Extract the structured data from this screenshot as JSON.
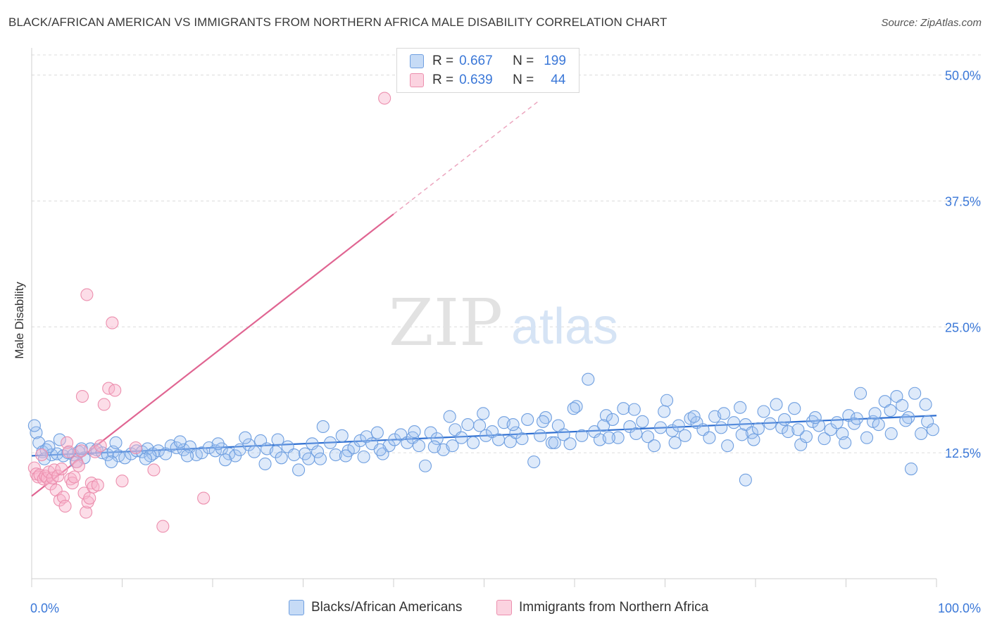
{
  "title": "BLACK/AFRICAN AMERICAN VS IMMIGRANTS FROM NORTHERN AFRICA MALE DISABILITY CORRELATION CHART",
  "source": "Source: ZipAtlas.com",
  "watermark": {
    "zip": "ZIP",
    "atlas": "atlas"
  },
  "legend": {
    "r_label": "R =",
    "n_label": "N =",
    "items": [
      {
        "r": "0.667",
        "n": "199",
        "color": "#a9c8f2",
        "border": "#6f9fe0"
      },
      {
        "r": "0.639",
        "n": "44",
        "color": "#f9c4d4",
        "border": "#ec8fae"
      }
    ]
  },
  "bottom_legend": [
    "Blacks/African Americans",
    "Immigrants from Northern Africa"
  ],
  "chart_data": {
    "type": "scatter",
    "title": "BLACK/AFRICAN AMERICAN VS IMMIGRANTS FROM NORTHERN AFRICA MALE DISABILITY CORRELATION CHART",
    "xlabel": "",
    "ylabel": "Male Disability",
    "xlim": [
      0,
      100
    ],
    "ylim": [
      0,
      52
    ],
    "x_tick_labels": [
      "0.0%",
      "100.0%"
    ],
    "y_ticks": [
      12.5,
      25.0,
      37.5,
      50.0
    ],
    "y_tick_labels": [
      "12.5%",
      "25.0%",
      "37.5%",
      "50.0%"
    ],
    "grid": true,
    "series": [
      {
        "name": "Blacks/African Americans",
        "color": "#7aa7e6",
        "trend": {
          "x0": 0,
          "y0": 12.2,
          "x1": 100,
          "y1": 16.2
        },
        "points": [
          [
            0.5,
            14.5
          ],
          [
            0.8,
            13.5
          ],
          [
            1.2,
            12.6
          ],
          [
            1.6,
            12.8
          ],
          [
            2.2,
            12.3
          ],
          [
            2.8,
            12.4
          ],
          [
            3.5,
            12.2
          ],
          [
            4,
            12.5
          ],
          [
            4.6,
            12.3
          ],
          [
            5.2,
            12.6
          ],
          [
            5.8,
            12.0
          ],
          [
            6.5,
            12.9
          ],
          [
            7.2,
            12.8
          ],
          [
            7.8,
            12.5
          ],
          [
            8.4,
            12.3
          ],
          [
            9,
            12.6
          ],
          [
            9.6,
            12.2
          ],
          [
            10.3,
            12.0
          ],
          [
            11,
            12.4
          ],
          [
            11.6,
            12.7
          ],
          [
            12.2,
            12.6
          ],
          [
            12.8,
            12.9
          ],
          [
            13.4,
            12.4
          ],
          [
            14,
            12.7
          ],
          [
            14.8,
            12.4
          ],
          [
            15.4,
            13.2
          ],
          [
            16,
            13.0
          ],
          [
            16.8,
            12.8
          ],
          [
            17.5,
            13.1
          ],
          [
            18.2,
            12.3
          ],
          [
            18.8,
            12.5
          ],
          [
            19.6,
            13.0
          ],
          [
            20.3,
            12.7
          ],
          [
            21,
            12.9
          ],
          [
            21.8,
            12.4
          ],
          [
            22.5,
            12.2
          ],
          [
            23,
            12.8
          ],
          [
            24,
            13.3
          ],
          [
            24.6,
            12.6
          ],
          [
            25.3,
            13.7
          ],
          [
            26,
            12.9
          ],
          [
            27,
            12.6
          ],
          [
            27.6,
            12.0
          ],
          [
            28.3,
            13.1
          ],
          [
            29,
            12.3
          ],
          [
            29.5,
            10.8
          ],
          [
            30.2,
            12.4
          ],
          [
            31,
            13.4
          ],
          [
            31.6,
            12.6
          ],
          [
            32.2,
            15.1
          ],
          [
            33,
            13.5
          ],
          [
            33.6,
            12.3
          ],
          [
            34.3,
            14.2
          ],
          [
            35,
            12.7
          ],
          [
            35.6,
            13.0
          ],
          [
            36.3,
            13.7
          ],
          [
            37,
            14.1
          ],
          [
            37.6,
            13.4
          ],
          [
            38.2,
            14.5
          ],
          [
            38.8,
            12.4
          ],
          [
            39.5,
            13.2
          ],
          [
            40.1,
            13.8
          ],
          [
            40.8,
            14.3
          ],
          [
            41.5,
            13.5
          ],
          [
            42.1,
            14.0
          ],
          [
            42.8,
            13.2
          ],
          [
            43.5,
            11.2
          ],
          [
            44.1,
            14.5
          ],
          [
            44.8,
            13.9
          ],
          [
            45.5,
            12.8
          ],
          [
            46.2,
            16.1
          ],
          [
            46.8,
            14.8
          ],
          [
            47.5,
            14.0
          ],
          [
            48.2,
            15.3
          ],
          [
            48.8,
            13.5
          ],
          [
            49.5,
            15.2
          ],
          [
            50.2,
            14.2
          ],
          [
            50.9,
            14.6
          ],
          [
            51.6,
            13.8
          ],
          [
            52.2,
            15.5
          ],
          [
            52.9,
            13.6
          ],
          [
            53.5,
            14.5
          ],
          [
            54.2,
            13.9
          ],
          [
            54.8,
            15.8
          ],
          [
            55.5,
            11.6
          ],
          [
            56.2,
            14.2
          ],
          [
            56.8,
            16.0
          ],
          [
            57.5,
            13.5
          ],
          [
            58.2,
            15.2
          ],
          [
            58.8,
            14.3
          ],
          [
            59.5,
            13.4
          ],
          [
            60.2,
            17.1
          ],
          [
            60.8,
            14.2
          ],
          [
            61.5,
            19.8
          ],
          [
            62.2,
            14.6
          ],
          [
            62.8,
            13.8
          ],
          [
            63.5,
            16.2
          ],
          [
            64.2,
            15.8
          ],
          [
            64.8,
            14.0
          ],
          [
            65.4,
            16.9
          ],
          [
            66.1,
            15.1
          ],
          [
            66.8,
            14.4
          ],
          [
            67.5,
            15.6
          ],
          [
            68.1,
            14.1
          ],
          [
            68.8,
            13.2
          ],
          [
            69.5,
            15.0
          ],
          [
            70.2,
            17.7
          ],
          [
            70.8,
            14.7
          ],
          [
            71.5,
            15.2
          ],
          [
            72.2,
            14.2
          ],
          [
            72.8,
            15.9
          ],
          [
            73.5,
            15.5
          ],
          [
            74.2,
            14.8
          ],
          [
            74.9,
            14.0
          ],
          [
            75.5,
            16.1
          ],
          [
            76.2,
            15.0
          ],
          [
            76.9,
            13.2
          ],
          [
            77.6,
            15.5
          ],
          [
            78.3,
            17.0
          ],
          [
            78.9,
            15.3
          ],
          [
            79.6,
            14.5
          ],
          [
            80.3,
            14.9
          ],
          [
            80.9,
            16.6
          ],
          [
            81.6,
            15.4
          ],
          [
            82.3,
            17.3
          ],
          [
            82.9,
            15.0
          ],
          [
            83.6,
            14.6
          ],
          [
            84.3,
            16.9
          ],
          [
            85,
            13.3
          ],
          [
            85.6,
            14.1
          ],
          [
            86.3,
            15.6
          ],
          [
            87,
            15.2
          ],
          [
            87.6,
            13.9
          ],
          [
            88.3,
            14.8
          ],
          [
            89,
            15.5
          ],
          [
            89.6,
            14.4
          ],
          [
            90.3,
            16.2
          ],
          [
            90.9,
            15.4
          ],
          [
            91.6,
            18.4
          ],
          [
            92.3,
            14.0
          ],
          [
            93,
            15.6
          ],
          [
            93.6,
            15.3
          ],
          [
            94.3,
            17.6
          ],
          [
            95,
            14.4
          ],
          [
            95.6,
            18.1
          ],
          [
            96.2,
            17.2
          ],
          [
            96.9,
            16.0
          ],
          [
            97.6,
            18.4
          ],
          [
            98.3,
            14.4
          ],
          [
            99,
            15.6
          ],
          [
            99.6,
            14.8
          ],
          [
            0.3,
            15.2
          ],
          [
            1.9,
            13.1
          ],
          [
            3.1,
            13.8
          ],
          [
            5.5,
            12.9
          ],
          [
            9.3,
            13.5
          ],
          [
            13.1,
            12.2
          ],
          [
            16.4,
            13.6
          ],
          [
            20.6,
            13.4
          ],
          [
            23.6,
            14.0
          ],
          [
            27.2,
            13.8
          ],
          [
            30.6,
            11.9
          ],
          [
            34.7,
            12.2
          ],
          [
            38.5,
            12.8
          ],
          [
            42.3,
            14.6
          ],
          [
            46.5,
            13.2
          ],
          [
            49.9,
            16.4
          ],
          [
            53.2,
            15.3
          ],
          [
            56.5,
            15.6
          ],
          [
            59.9,
            16.9
          ],
          [
            63.2,
            15.2
          ],
          [
            66.6,
            16.8
          ],
          [
            69.9,
            16.6
          ],
          [
            73.2,
            16.1
          ],
          [
            76.5,
            16.4
          ],
          [
            79.8,
            13.8
          ],
          [
            83.2,
            15.8
          ],
          [
            86.6,
            16.0
          ],
          [
            89.9,
            13.5
          ],
          [
            93.2,
            16.4
          ],
          [
            96.6,
            15.7
          ],
          [
            98.8,
            17.3
          ],
          [
            1.4,
            11.9
          ],
          [
            4.9,
            11.6
          ],
          [
            8.8,
            11.6
          ],
          [
            12.6,
            11.9
          ],
          [
            17.2,
            12.2
          ],
          [
            21.4,
            11.8
          ],
          [
            25.8,
            11.4
          ],
          [
            31.9,
            11.9
          ],
          [
            36.7,
            12.1
          ],
          [
            44.5,
            13.1
          ],
          [
            57.8,
            13.5
          ],
          [
            63.8,
            14.0
          ],
          [
            71.1,
            13.5
          ],
          [
            78.5,
            14.3
          ],
          [
            84.7,
            14.8
          ],
          [
            91.2,
            15.9
          ],
          [
            94.9,
            16.7
          ],
          [
            97.2,
            10.9
          ],
          [
            78.9,
            9.8
          ]
        ]
      },
      {
        "name": "Immigrants from Northern Africa",
        "color": "#f291b2",
        "trend": {
          "x0": 0,
          "y0": 8.2,
          "x1": 40,
          "y1": 36.2,
          "dash_to_x": 56,
          "dash_to_y": 47.4
        },
        "points": [
          [
            0.3,
            11.0
          ],
          [
            0.5,
            10.4
          ],
          [
            0.7,
            10.1
          ],
          [
            0.9,
            10.3
          ],
          [
            1.1,
            12.3
          ],
          [
            1.3,
            9.9
          ],
          [
            1.5,
            10.2
          ],
          [
            1.7,
            10.0
          ],
          [
            1.9,
            10.6
          ],
          [
            2.1,
            9.4
          ],
          [
            2.3,
            10.0
          ],
          [
            2.5,
            10.8
          ],
          [
            2.7,
            8.8
          ],
          [
            2.9,
            10.2
          ],
          [
            3.1,
            7.8
          ],
          [
            3.3,
            10.9
          ],
          [
            3.5,
            8.1
          ],
          [
            3.7,
            7.2
          ],
          [
            3.9,
            13.5
          ],
          [
            4.1,
            12.6
          ],
          [
            4.3,
            9.9
          ],
          [
            4.5,
            9.5
          ],
          [
            4.7,
            10.1
          ],
          [
            5.0,
            11.6
          ],
          [
            5.2,
            11.2
          ],
          [
            5.5,
            12.7
          ],
          [
            5.8,
            8.5
          ],
          [
            6.0,
            6.6
          ],
          [
            6.2,
            7.6
          ],
          [
            6.4,
            8.0
          ],
          [
            6.6,
            9.5
          ],
          [
            6.8,
            9.1
          ],
          [
            7.0,
            12.6
          ],
          [
            7.3,
            9.3
          ],
          [
            7.6,
            13.2
          ],
          [
            8.0,
            17.3
          ],
          [
            8.5,
            18.9
          ],
          [
            8.9,
            25.4
          ],
          [
            9.2,
            18.7
          ],
          [
            5.6,
            18.1
          ],
          [
            6.1,
            28.2
          ],
          [
            10,
            9.7
          ],
          [
            11.5,
            13.0
          ],
          [
            13.5,
            10.8
          ],
          [
            14.5,
            5.2
          ],
          [
            19,
            8.0
          ],
          [
            39,
            47.7
          ]
        ]
      }
    ]
  }
}
